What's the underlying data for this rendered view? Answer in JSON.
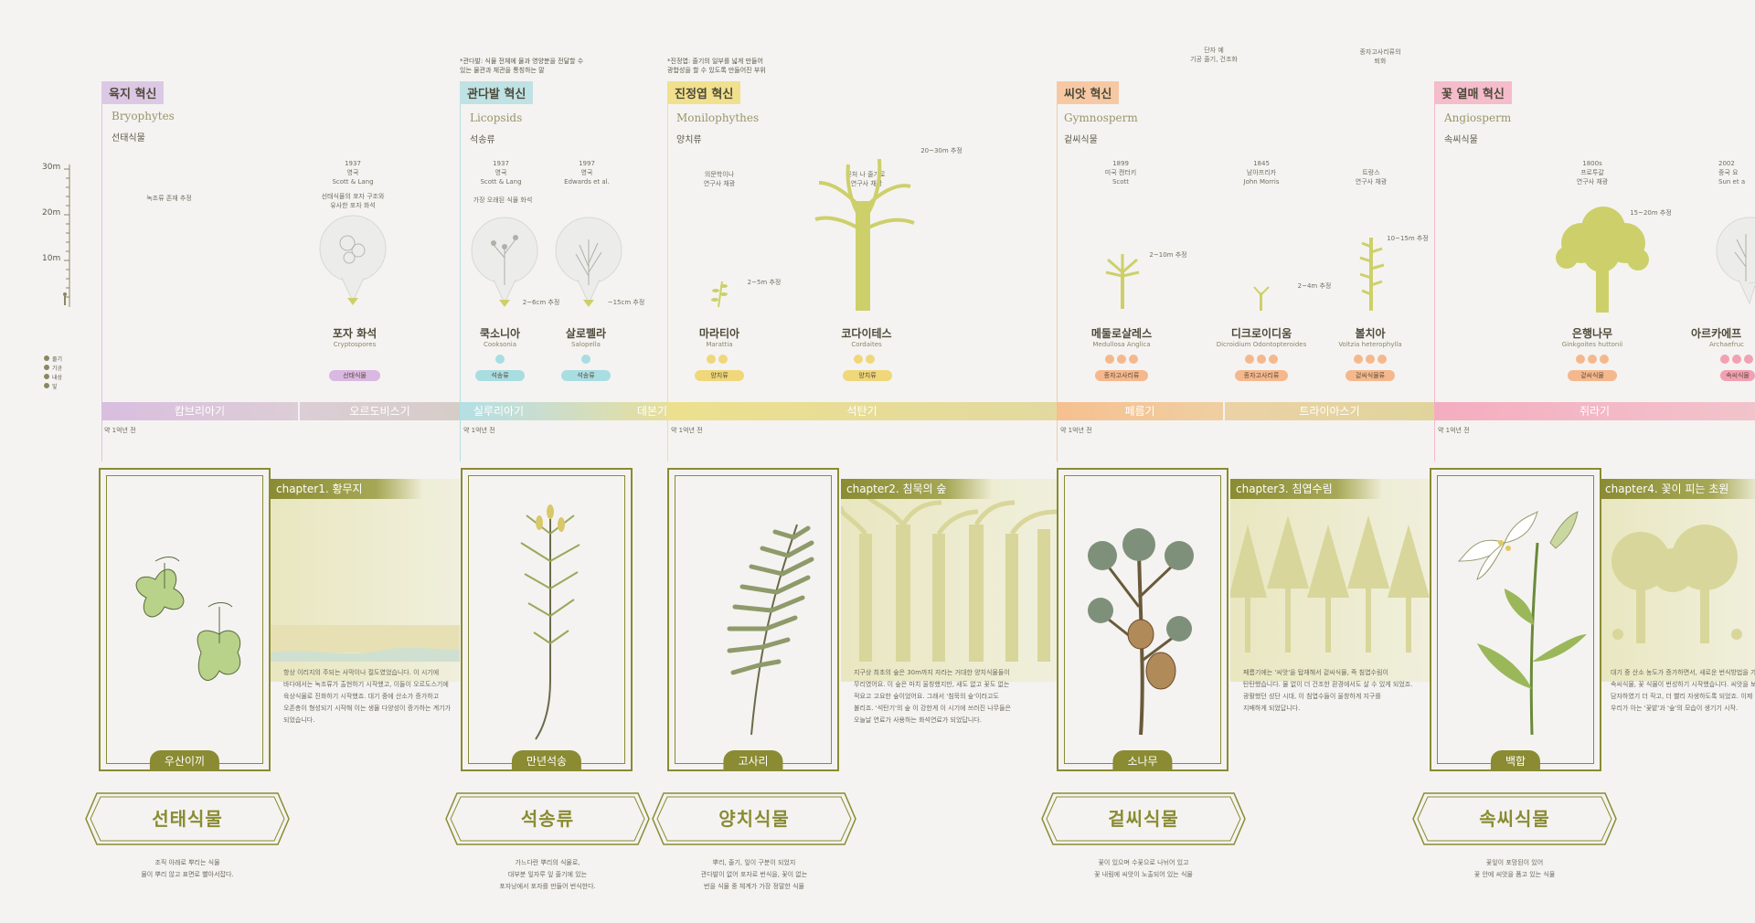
{
  "scale": {
    "labels": [
      "30m",
      "20m",
      "10m"
    ]
  },
  "legend": [
    "줄기",
    "기공",
    "내상",
    "잎"
  ],
  "notes": {
    "note1": "*관다발: 식물 전체에 물과 영양분을 전달할 수\n있는 물관과 체관을 통칭하는 말",
    "note2": "*진정엽: 줄기의 일부를 넓게 만들어\n광합성을 할 수 있도록 만들어진 부위",
    "note3": "단자 예\n기공 줄기, 건조화",
    "note4": "종자고사리류의\n퇴화"
  },
  "innovations": [
    {
      "badge": "육지 혁신",
      "latin": "Bryophytes",
      "kor": "선태식물",
      "color": "#dcc8e4"
    },
    {
      "badge": "관다발 혁신",
      "latin": "Licopsids",
      "kor": "석송류",
      "color": "#bfe2e4"
    },
    {
      "badge": "진정엽 혁신",
      "latin": "Monilophythes",
      "kor": "양치류",
      "color": "#f1e08e"
    },
    {
      "badge": "씨앗 혁신",
      "latin": "Gymnosperm",
      "kor": "겉씨식물",
      "color": "#f6c9a4"
    },
    {
      "badge": "꽃 열매 혁신",
      "latin": "Angiosperm",
      "kor": "속씨식물",
      "color": "#f5bccb"
    }
  ],
  "annotations": {
    "moss_note": "녹조류 존재 추정",
    "fossil_info": "1937\n영국\nScott & Lang",
    "fossil_desc": "선태식물의 포자 구조와\n유사한 포자 화석",
    "cook_info": "1937\n영국\nScott & Lang",
    "oldest": "가장 오래된 식물 화석",
    "salop_info": "1997\n영국\nEdwards et al.",
    "cook_size": "2~6cm 추정",
    "salop_size": "~15cm 추정",
    "marat_info": "의문학이나\n연구사 채광",
    "marat_size": "2~5m 추정",
    "cord_info": "꽃처 나 줄기로 \n연구사 채광",
    "cord_size": "20~30m 추정",
    "medul_info": "1899\n미국 캔터키\nScott",
    "medul_size": "2~10m 추정",
    "dicro_info": "1845\n남아프리카\nJohn Morris",
    "dicro_size": "2~4m 추정",
    "voltz_info": "트랑스\n연구사 채광",
    "voltz_size": "10~15m 추정",
    "ginkgo_info": "1800s\n프로투갈\n연구사 채광",
    "ginkgo_size": "15~20m 추정",
    "arch_info": "2002\n중국 요\nSun et a"
  },
  "plants": [
    {
      "name": "포자 화석",
      "sci": "Cryptospores",
      "pill": "선태식물",
      "pill_color": "#d9b8e2"
    },
    {
      "name": "쿡소니아",
      "sci": "Cooksonia",
      "pill": "석송류",
      "pill_color": "#a8dde2"
    },
    {
      "name": "살로펠라",
      "sci": "Salopella",
      "pill": "석송류",
      "pill_color": "#a8dde2"
    },
    {
      "name": "마라티아",
      "sci": "Marattia",
      "pill": "양치류",
      "pill_color": "#efd77a"
    },
    {
      "name": "코다이테스",
      "sci": "Cordaites",
      "pill": "양치류",
      "pill_color": "#efd77a"
    },
    {
      "name": "메둘로살레스",
      "sci": "Medullosa Anglica",
      "pill": "종자고사리류",
      "pill_color": "#f5b88d"
    },
    {
      "name": "디크로이디움",
      "sci": "Dicroidium Odontopteroides",
      "pill": "종자고사리류",
      "pill_color": "#f5b88d"
    },
    {
      "name": "볼치아",
      "sci": "Voltzia heterophylla",
      "pill": "겉씨식물류",
      "pill_color": "#f5b88d"
    },
    {
      "name": "은행나무",
      "sci": "Ginkgoites huttonii",
      "pill": "겉씨식물",
      "pill_color": "#f5b88d"
    },
    {
      "name": "아르카에프",
      "sci": "Archaefruc",
      "pill": "속씨식물",
      "pill_color": "#f2a0b3"
    }
  ],
  "periods": [
    {
      "name": "캄브리아기",
      "color": "#d9bedf"
    },
    {
      "name": "오르도비스기",
      "color": "#d6c9d3"
    },
    {
      "name": "실루리아기",
      "color": "#b9dfe2"
    },
    {
      "name": "데본기",
      "color": "#d7dcc4"
    },
    {
      "name": "석탄기",
      "color": "#eee18f"
    },
    {
      "name": "페름기",
      "color": "#f6c394"
    },
    {
      "name": "트라이아스기",
      "color": "#e7d4a8"
    },
    {
      "name": "쥐라기",
      "color": "#f4b0c1"
    }
  ],
  "years_label": "약 1억년 전",
  "cards": [
    "우산이끼",
    "만년석송",
    "고사리",
    "소나무",
    "백합"
  ],
  "chapters": [
    {
      "title": "chapter1. 황무지",
      "text": "항상 이리지의 주되는 사막이나 절도였었습니다. 이 시기에\n바다에서는 녹조류가 출현하기 시작했고, 이들이 오르도스기에\n육상식물로 진화하기 시작했죠. 대기 중에 산소가 증가하고\n오존층이 형성되기 시작해 이는 생물 다양성이 증가하는 계기가\n되었습니다."
    },
    {
      "title": "chapter2. 침묵의 숲",
      "text": "지구상 최초의 숲은 30m까지 자라는 거대한 양치식물들이\n무리였어요. 이 숲은 마치 울창했지만, 새도 없고 꽃도 없는\n적요고 고요한 숲이었어요. 그래서 '침묵의 숲'이라고도\n불리죠. '석탄기'의 숲 이 강한게 이 시기에 쓰러진 나무들은\n오늘날 연료가 사용하는 화석연료가 되었답니다."
    },
    {
      "title": "chapter3. 침엽수림",
      "text": "페름기에는 '씨앗'을 탑재해서 겉씨식물, 즉 침엽수림이\n탄탄했습니다. 물 없이 더 건조한 환경에서도 살 수 있게 되었죠.\n광활했던 성단 시대, 이 침엽수들이 울창하게 지구를\n지배하게 되었답니다."
    },
    {
      "title": "chapter4. 꽃이 피는 초원",
      "text": "대기 중 산소 농도가 증가하면서, 새로운 번식방법을 가\n속씨식물, 꽃 식물이 번성하기 시작했습니다. 씨앗을 보\n담자하였기 더 작고, 더 빨리 자생하도록 되었죠. 이제\n우리가 아는 '꽃밭'과 '숲'의 모습이 생기기 시작."
    }
  ],
  "groups": [
    {
      "label": "선태식물",
      "desc": "조직 아래로 뿌리는 식물\n물이 뿌리 않고 표면로 빨아서잡다."
    },
    {
      "label": "석송류",
      "desc": "가느다란 뿌리의 식물로,\n대부분 잎자루 잎 줄기에 있는\n포자낭에서 포자를 만들어 번식한다."
    },
    {
      "label": "양치식물",
      "desc": "뿌리, 줄기, 잎이 구분이 되었지\n관다발이 없어 포자로 번식을, 꽃이 없는\n번을 식물 중 체계가 가장 정말한 식물"
    },
    {
      "label": "겉씨식물",
      "desc": "꽃이 있으며 수꽃으로 나뉘어 있고\n꽃 내림에 씨앗이 노출되어 있는 식물"
    },
    {
      "label": "속씨식물",
      "desc": "꽃잎이 포망된이 있어\n꽃 안에 씨앗을 품고 있는 식물"
    }
  ]
}
